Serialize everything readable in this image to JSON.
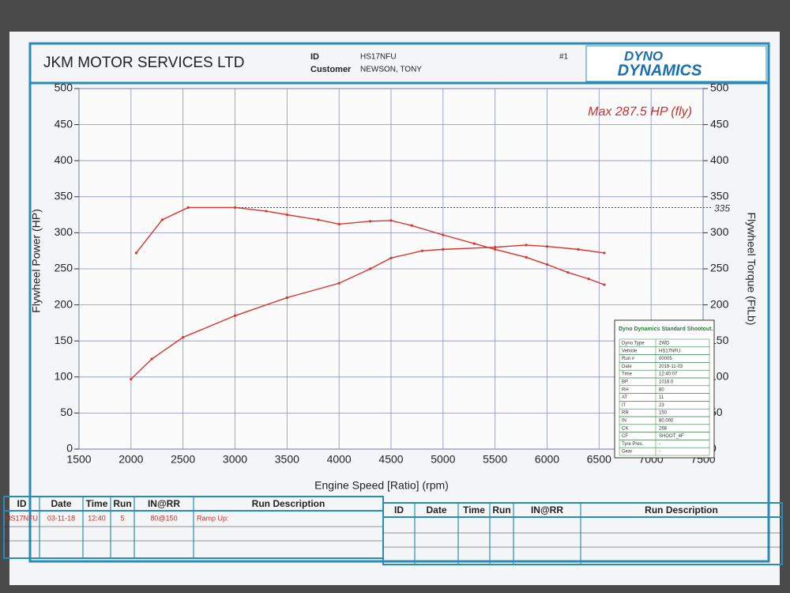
{
  "header": {
    "company": "JKM MOTOR SERVICES LTD",
    "id_label": "ID",
    "id_value": "HS17NFU",
    "customer_label": "Customer",
    "customer_value": "NEWSON, TONY",
    "sheet_number": "#1",
    "logo_top": "DYNO",
    "logo_bottom": "DYNAMICS"
  },
  "chart_data": {
    "type": "line",
    "annotation": "Max 287.5 HP (fly)",
    "reference_line": 335,
    "xlabel": "Engine Speed [Ratio] (rpm)",
    "ylabel": "Flywheel Power (HP)",
    "y2label": "Flywheel Torque (FtLb)",
    "xlim": [
      1500,
      7500
    ],
    "xticks": [
      1500,
      2000,
      2500,
      3000,
      3500,
      4000,
      4500,
      5000,
      5500,
      6000,
      6500,
      7000,
      7500
    ],
    "ylim": [
      0,
      500
    ],
    "yticks": [
      0,
      50,
      100,
      150,
      200,
      250,
      300,
      350,
      400,
      450,
      500
    ],
    "y2lim": [
      0,
      500
    ],
    "y2ticks": [
      0,
      50,
      100,
      150,
      200,
      250,
      300,
      350,
      400,
      450,
      500
    ],
    "grid": true,
    "series": [
      {
        "color": "#d8342c",
        "axis": "y",
        "x": [
          2000,
          2200,
          2500,
          3000,
          3500,
          4000,
          4300,
          4500,
          4800,
          5000,
          5500,
          5800,
          6000,
          6300,
          6550
        ],
        "values": [
          97,
          125,
          155,
          185,
          210,
          230,
          250,
          265,
          275,
          277,
          280,
          283,
          281,
          277,
          272
        ]
      },
      {
        "color": "#d8342c",
        "axis": "y2",
        "x": [
          2050,
          2300,
          2550,
          3000,
          3300,
          3500,
          3800,
          4000,
          4300,
          4500,
          4700,
          5000,
          5300,
          5500,
          5800,
          6000,
          6200,
          6400,
          6550
        ],
        "values": [
          272,
          318,
          335,
          335,
          330,
          325,
          318,
          312,
          316,
          317,
          310,
          297,
          285,
          277,
          266,
          256,
          245,
          236,
          228
        ]
      }
    ]
  },
  "inset": {
    "title": "Dyno Dynamics Standard Shootout.",
    "rows": [
      [
        "Dyno Type",
        "2WD"
      ],
      [
        "Vehicle",
        "HS17NFU"
      ],
      [
        "Run #",
        "00005"
      ],
      [
        "Date",
        "2018-11-03"
      ],
      [
        "Time",
        "12:40:07"
      ],
      [
        "BP",
        "1016.0"
      ],
      [
        "RH",
        "80"
      ],
      [
        "AT",
        "11"
      ],
      [
        "IT",
        "23"
      ],
      [
        "RR",
        "150"
      ],
      [
        "IN",
        "80.000"
      ],
      [
        "CK",
        "268"
      ],
      [
        "CF",
        "SHOOT_4F"
      ],
      [
        "Tyre Pres.",
        "-"
      ],
      [
        "Gear",
        "-"
      ]
    ]
  },
  "log_table": {
    "columns": [
      "ID",
      "Date",
      "Time",
      "Run",
      "IN@RR",
      "Run Description"
    ],
    "row": [
      "HS17NFU",
      "03-11-18",
      "12:40",
      "5",
      "80@150",
      "Ramp Up:"
    ]
  }
}
